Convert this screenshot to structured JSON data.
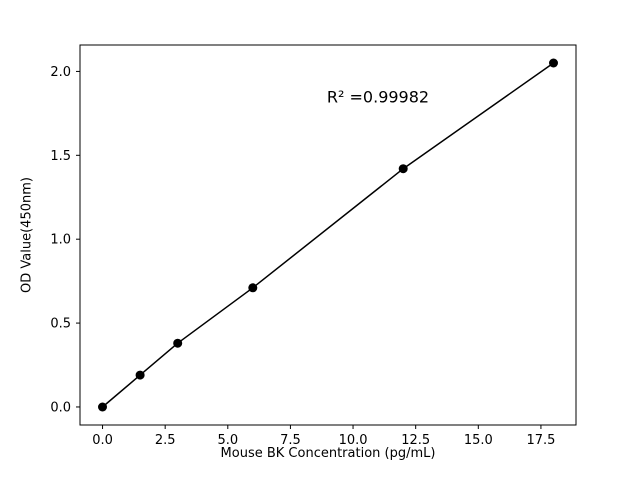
{
  "chart_data": {
    "type": "line",
    "x": [
      0,
      1.5,
      3,
      6,
      12,
      18
    ],
    "y": [
      0.0,
      0.19,
      0.38,
      0.71,
      1.42,
      2.05
    ],
    "title": "",
    "xlabel": "Mouse BK Concentration (pg/mL)",
    "ylabel": "OD Value(450nm)",
    "xlim": [
      -0.9,
      18.9
    ],
    "ylim": [
      -0.1075,
      2.1575
    ],
    "xticks": [
      0.0,
      2.5,
      5.0,
      7.5,
      10.0,
      12.5,
      15.0,
      17.5
    ],
    "xtick_labels": [
      "0.0",
      "2.5",
      "5.0",
      "7.5",
      "10.0",
      "12.5",
      "15.0",
      "17.5"
    ],
    "yticks": [
      0.0,
      0.5,
      1.0,
      1.5,
      2.0
    ],
    "ytick_labels": [
      "0.0",
      "0.5",
      "1.0",
      "1.5",
      "2.0"
    ],
    "annotation": {
      "text": "R² =0.99982",
      "x": 11.0,
      "y": 1.85
    },
    "line_color": "#000000",
    "marker_color": "#000000",
    "background_color": "#ffffff",
    "grid": false,
    "legend": null
  }
}
